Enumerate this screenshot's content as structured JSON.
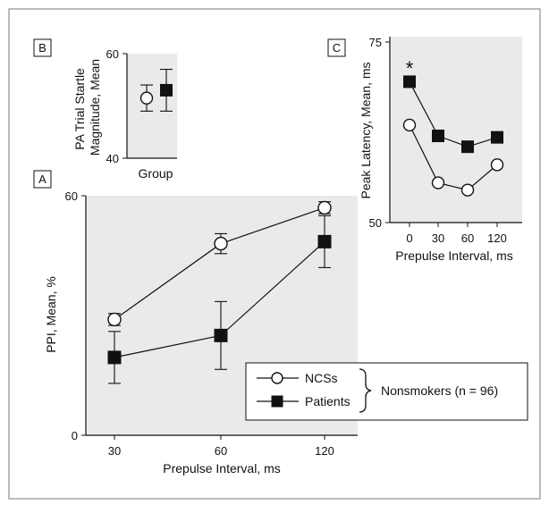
{
  "chart_data": [
    {
      "panel": "A",
      "type": "line",
      "xlabel": "Prepulse Interval, ms",
      "ylabel": "PPI, Mean, %",
      "categories": [
        "30",
        "60",
        "120"
      ],
      "ylim": [
        0,
        60
      ],
      "yticks": [
        "0",
        "60"
      ],
      "series": [
        {
          "name": "NCSs",
          "values": [
            29,
            48,
            57
          ],
          "err": [
            1.5,
            2.5,
            1.5
          ],
          "marker": "open-circle"
        },
        {
          "name": "Patients",
          "values": [
            19.5,
            25,
            48.5
          ],
          "err": [
            6.5,
            8.5,
            6.5
          ],
          "marker": "filled-square"
        }
      ]
    },
    {
      "panel": "B",
      "type": "scatter",
      "xlabel": "Group",
      "ylabel": "PA Trial Startle Magnitude, Mean",
      "ylim": [
        40,
        60
      ],
      "yticks": [
        "40",
        "60"
      ],
      "series": [
        {
          "name": "NCSs",
          "values": [
            51.5
          ],
          "err": [
            2.5
          ],
          "marker": "open-circle"
        },
        {
          "name": "Patients",
          "values": [
            53
          ],
          "err": [
            4
          ],
          "marker": "filled-square"
        }
      ]
    },
    {
      "panel": "C",
      "type": "line",
      "xlabel": "Prepulse Interval, ms",
      "ylabel": "Peak Latency, Mean, ms",
      "categories": [
        "0",
        "30",
        "60",
        "120"
      ],
      "ylim": [
        50,
        75
      ],
      "yticks": [
        "50",
        "75"
      ],
      "annotation": "*",
      "series": [
        {
          "name": "NCSs",
          "values": [
            63.5,
            55.5,
            54.5,
            58
          ],
          "marker": "open-circle"
        },
        {
          "name": "Patients",
          "values": [
            69.5,
            62,
            60.5,
            61.8
          ],
          "marker": "filled-square"
        }
      ]
    }
  ],
  "legend": {
    "entries": [
      {
        "label": "NCSs",
        "marker": "open-circle"
      },
      {
        "label": "Patients",
        "marker": "filled-square"
      }
    ],
    "group_label": "Nonsmokers (n = 96)"
  },
  "colors": {
    "panel_bg": "#eaeaea",
    "ink": "#111111",
    "frame": "#777777"
  }
}
